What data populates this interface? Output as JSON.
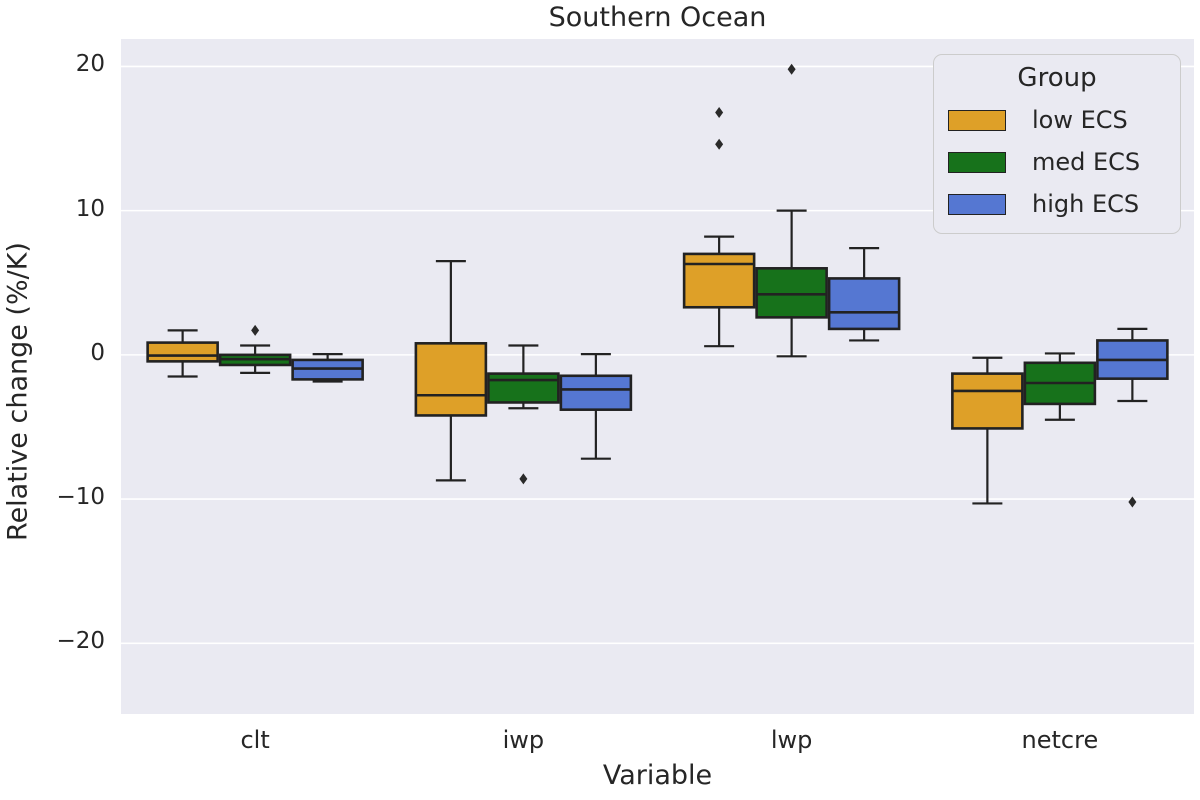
{
  "chart_data": {
    "type": "box",
    "title": "Southern Ocean",
    "xlabel": "Variable",
    "ylabel": "Relative change (%/K)",
    "categories": [
      "clt",
      "iwp",
      "lwp",
      "netcre"
    ],
    "yticks": [
      -20,
      -10,
      0,
      10,
      20
    ],
    "ylim": [
      -24.9,
      21.9
    ],
    "grid": "horizontal-white-on-gray",
    "legend": {
      "title": "Group",
      "position": "upper right"
    },
    "colors": {
      "plot_background": "#EAEAF2",
      "gridline": "#FFFFFF",
      "box_edge": "#222222",
      "text": "#262626"
    },
    "series": [
      {
        "name": "low ECS",
        "color": "#DEA028",
        "whisker_low": [
          -1.5,
          -8.7,
          0.6,
          -10.3
        ],
        "q1": [
          -0.45,
          -4.2,
          3.3,
          -5.1
        ],
        "median": [
          -0.05,
          -2.8,
          6.3,
          -2.5
        ],
        "q3": [
          0.85,
          0.8,
          7.0,
          -1.3
        ],
        "whisker_high": [
          1.7,
          6.5,
          8.2,
          -0.2
        ],
        "outliers": [
          [],
          [],
          [
            14.6,
            16.8
          ],
          []
        ]
      },
      {
        "name": "med ECS",
        "color": "#17721B",
        "whisker_low": [
          -1.25,
          -3.7,
          -0.1,
          -4.5
        ],
        "q1": [
          -0.7,
          -3.3,
          2.6,
          -3.4
        ],
        "median": [
          -0.3,
          -1.75,
          4.2,
          -1.95
        ],
        "q3": [
          0.0,
          -1.3,
          6.0,
          -0.55
        ],
        "whisker_high": [
          0.65,
          0.65,
          10.0,
          0.1
        ],
        "outliers": [
          [
            1.7
          ],
          [
            -8.6
          ],
          [
            19.8
          ],
          []
        ]
      },
      {
        "name": "high ECS",
        "color": "#5577D2",
        "whisker_low": [
          -1.85,
          -7.2,
          1.0,
          -3.2
        ],
        "q1": [
          -1.7,
          -3.8,
          1.8,
          -1.65
        ],
        "median": [
          -0.95,
          -2.4,
          2.95,
          -0.35
        ],
        "q3": [
          -0.35,
          -1.45,
          5.3,
          1.0
        ],
        "whisker_high": [
          0.05,
          0.05,
          7.4,
          1.8
        ],
        "outliers": [
          [],
          [],
          [],
          [
            -10.2
          ]
        ]
      }
    ]
  }
}
